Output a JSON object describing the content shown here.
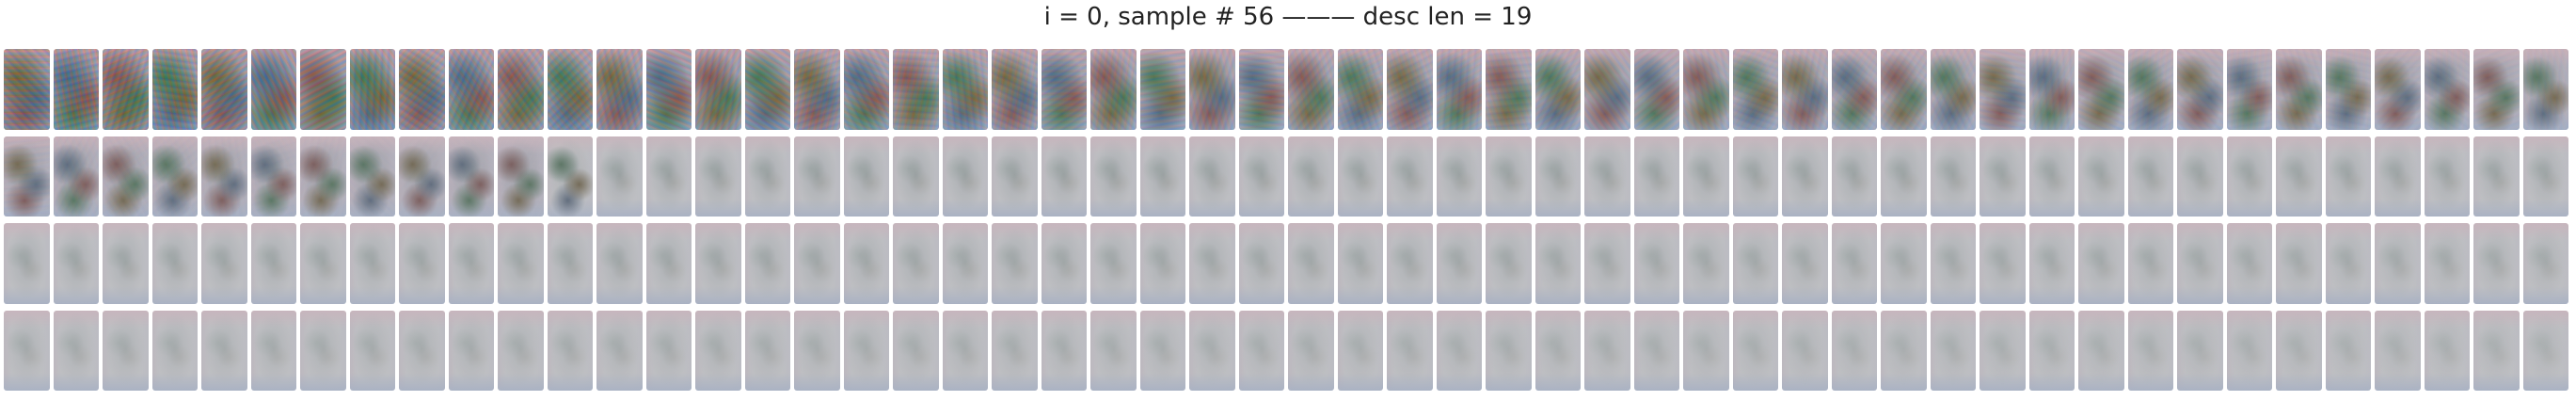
{
  "figure": {
    "title": "i = 0, sample # 56 ——— desc len = 19"
  },
  "grid": {
    "rows": 4,
    "cols": 52,
    "frame_count": 208,
    "order": "row-major",
    "content": "noise-to-image denoising sequence thumbnails",
    "palette": {
      "early_noise": [
        "#7a6a4a",
        "#5a6e8a",
        "#8a5a5a",
        "#4f7a5e"
      ],
      "mid_tint": "#b9b3c4",
      "late_gray": "#c4c6cc",
      "pink_edge": "#d9b8c6",
      "blue_edge": "#a9b8d8"
    }
  }
}
